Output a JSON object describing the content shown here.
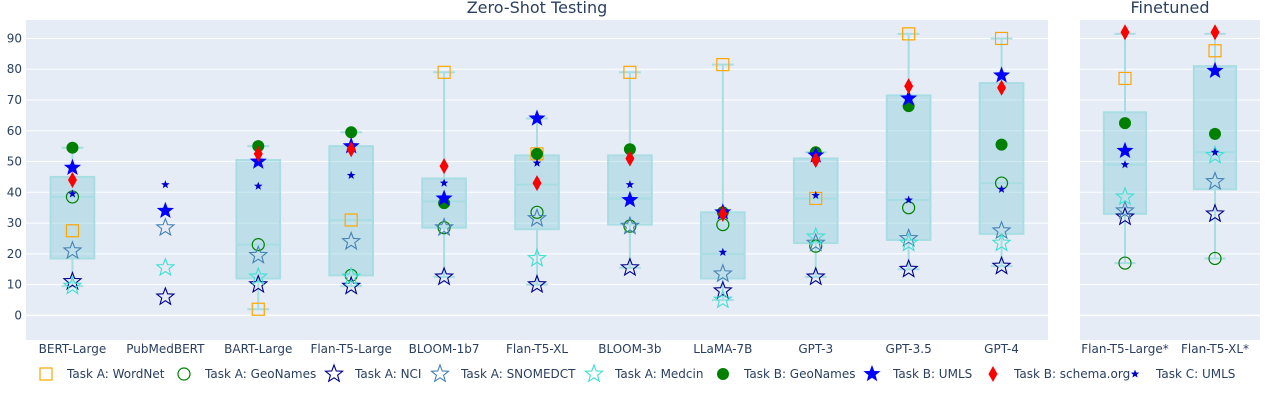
{
  "chart_data": {
    "type": "box",
    "yticks": [
      0,
      10,
      20,
      30,
      40,
      50,
      60,
      70,
      80,
      90
    ],
    "ylim": [
      -8,
      96
    ],
    "panels": [
      {
        "title": "Zero-Shot Testing",
        "models": [
          "BERT-Large",
          "PubMedBERT",
          "BART-Large",
          "Flan-T5-Large",
          "BLOOM-1b7",
          "Flan-T5-XL",
          "BLOOM-3b",
          "LLaMA-7B",
          "GPT-3",
          "GPT-3.5",
          "GPT-4"
        ],
        "boxes": [
          {
            "q1": 18.5,
            "median": 38.5,
            "q3": 45.0,
            "min": 9.5,
            "max": 54.5
          },
          null,
          {
            "q1": 12.0,
            "median": 23.0,
            "q3": 50.5,
            "min": 2.0,
            "max": 55.0
          },
          {
            "q1": 13.0,
            "median": 31.0,
            "q3": 55.0,
            "min": 9.5,
            "max": 59.5
          },
          {
            "q1": 28.5,
            "median": 37.0,
            "q3": 44.5,
            "min": 12.5,
            "max": 79.0
          },
          {
            "q1": 28.0,
            "median": 42.5,
            "q3": 52.0,
            "min": 10.0,
            "max": 64.0
          },
          {
            "q1": 29.5,
            "median": 38.0,
            "q3": 52.0,
            "min": 15.5,
            "max": 79.0
          },
          {
            "q1": 12.0,
            "median": 20.0,
            "q3": 33.5,
            "min": 5.0,
            "max": 81.5
          },
          {
            "q1": 23.5,
            "median": 38.0,
            "q3": 51.0,
            "min": 12.5,
            "max": 53.0
          },
          {
            "q1": 24.5,
            "median": 37.5,
            "q3": 71.5,
            "min": 15.0,
            "max": 91.5
          },
          {
            "q1": 26.5,
            "median": 43.0,
            "q3": 75.5,
            "min": 16.0,
            "max": 90.0
          }
        ]
      },
      {
        "title": "Finetuned",
        "models": [
          "Flan-T5-Large*",
          "Flan-T5-XL*"
        ],
        "boxes": [
          {
            "q1": 33.0,
            "median": 49.0,
            "q3": 66.0,
            "min": 17.0,
            "max": 91.5
          },
          {
            "q1": 41.0,
            "median": 53.0,
            "q3": 81.0,
            "min": 18.5,
            "max": 91.5
          }
        ]
      }
    ],
    "series": [
      {
        "name": "Task A: WordNet",
        "symbol": "square-open",
        "color": "#ffa500",
        "values": [
          [
            27.5,
            null,
            2.0,
            31.0,
            79.0,
            52.5,
            79.0,
            81.5,
            38.0,
            91.5,
            90.0
          ],
          [
            77.0,
            86.0
          ]
        ]
      },
      {
        "name": "Task A: GeoNames",
        "symbol": "circle-open",
        "color": "#008000",
        "values": [
          [
            38.5,
            null,
            23.0,
            13.0,
            28.5,
            33.5,
            29.0,
            29.5,
            22.5,
            35.0,
            43.0
          ],
          [
            17.0,
            18.5
          ]
        ]
      },
      {
        "name": "Task A: NCI",
        "symbol": "star-open",
        "color": "#00008b",
        "values": [
          [
            11.0,
            6.0,
            10.0,
            9.5,
            12.5,
            10.0,
            15.5,
            8.0,
            12.5,
            15.0,
            16.0
          ],
          [
            32.0,
            33.0
          ]
        ]
      },
      {
        "name": "Task A: SNOMEDCT",
        "symbol": "star-open",
        "color": "#4682b4",
        "values": [
          [
            21.0,
            28.5,
            19.5,
            24.0,
            28.5,
            31.5,
            29.0,
            13.5,
            23.5,
            25.0,
            27.5
          ],
          [
            34.0,
            43.5
          ]
        ]
      },
      {
        "name": "Task A: Medcin",
        "symbol": "star-open",
        "color": "#40e0d0",
        "values": [
          [
            9.5,
            15.5,
            12.5,
            12.5,
            null,
            18.5,
            null,
            5.0,
            25.5,
            23.5,
            23.5
          ],
          [
            38.5,
            52.0
          ]
        ]
      },
      {
        "name": "Task B: GeoNames",
        "symbol": "circle",
        "color": "#008000",
        "values": [
          [
            54.5,
            null,
            55.0,
            59.5,
            36.5,
            52.5,
            54.0,
            33.5,
            53.0,
            68.0,
            55.5
          ],
          [
            62.5,
            59.0
          ]
        ]
      },
      {
        "name": "Task B: UMLS",
        "symbol": "star",
        "color": "#0000ff",
        "values": [
          [
            48.0,
            34.0,
            50.0,
            55.0,
            38.0,
            64.0,
            37.5,
            33.5,
            52.0,
            70.5,
            78.0
          ],
          [
            53.5,
            79.5
          ]
        ]
      },
      {
        "name": "Task B: schema.org",
        "symbol": "diamond",
        "color": "#ff0000",
        "values": [
          [
            44.0,
            null,
            52.5,
            54.0,
            48.5,
            43.0,
            51.0,
            33.0,
            50.5,
            74.5,
            74.0
          ],
          [
            92.0,
            92.0
          ]
        ]
      },
      {
        "name": "Task C: UMLS",
        "symbol": "star-small",
        "color": "#0000cd",
        "values": [
          [
            39.5,
            42.5,
            42.0,
            45.5,
            43.0,
            49.5,
            42.5,
            20.5,
            39.0,
            37.5,
            41.0
          ],
          [
            49.0,
            53.0
          ]
        ]
      }
    ]
  }
}
